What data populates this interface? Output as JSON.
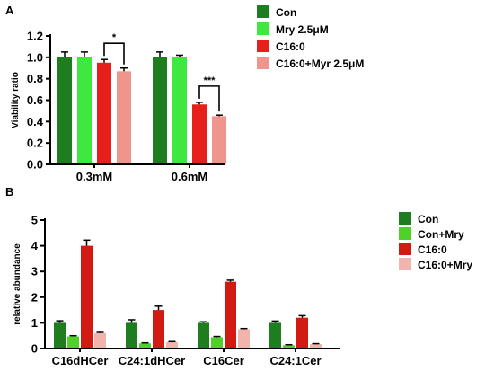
{
  "chart_data": [
    {
      "panel": "A",
      "type": "bar",
      "title": "",
      "xlabel": "",
      "ylabel": "Viability ratio",
      "ylim": [
        0,
        1.2
      ],
      "yticks": [
        "0.0",
        "0.2",
        "0.4",
        "0.6",
        "0.8",
        "1.0",
        "1.2"
      ],
      "categories": [
        "0.3mM",
        "0.6mM"
      ],
      "series": [
        {
          "name": "Con",
          "color": "#1e7d1e",
          "values": [
            1.0,
            1.0
          ],
          "errors": [
            0.05,
            0.05
          ]
        },
        {
          "name": "Mry 2.5μM",
          "color": "#3ee83e",
          "values": [
            1.0,
            1.0
          ],
          "errors": [
            0.05,
            0.02
          ]
        },
        {
          "name": "C16:0",
          "color": "#e8201c",
          "values": [
            0.95,
            0.56
          ],
          "errors": [
            0.03,
            0.02
          ]
        },
        {
          "name": "C16:0+Myr 2.5μM",
          "color": "#f0958c",
          "values": [
            0.87,
            0.45
          ],
          "errors": [
            0.03,
            0.01
          ]
        }
      ],
      "annotations": [
        {
          "text": "*",
          "category": "0.3mM",
          "between": [
            "C16:0",
            "C16:0+Myr 2.5μM"
          ]
        },
        {
          "text": "***",
          "category": "0.6mM",
          "between": [
            "C16:0",
            "C16:0+Myr 2.5μM"
          ]
        }
      ],
      "legend": "right",
      "grid": false
    },
    {
      "panel": "B",
      "type": "bar",
      "title": "",
      "xlabel": "",
      "ylabel": "relative abundance",
      "ylim": [
        0,
        5
      ],
      "yticks": [
        "0",
        "1",
        "2",
        "3",
        "4",
        "5"
      ],
      "categories": [
        "C16dHCer",
        "C24:1dHCer",
        "C16Cer",
        "C24:1Cer"
      ],
      "series": [
        {
          "name": "Con",
          "color": "#1e7d1e",
          "values": [
            1.0,
            1.0,
            1.0,
            1.0
          ],
          "errors": [
            0.08,
            0.12,
            0.04,
            0.07
          ]
        },
        {
          "name": "Con+Mry",
          "color": "#4fd12a",
          "values": [
            0.47,
            0.2,
            0.44,
            0.13
          ],
          "errors": [
            0.03,
            0.02,
            0.03,
            0.02
          ]
        },
        {
          "name": "C16:0",
          "color": "#d21a12",
          "values": [
            4.0,
            1.5,
            2.6,
            1.2
          ],
          "errors": [
            0.22,
            0.15,
            0.06,
            0.08
          ]
        },
        {
          "name": "C16:0+Mry",
          "color": "#f1b4ad",
          "values": [
            0.6,
            0.25,
            0.75,
            0.17
          ],
          "errors": [
            0.03,
            0.02,
            0.03,
            0.02
          ]
        }
      ],
      "legend": "right",
      "grid": false
    }
  ],
  "panel_labels": {
    "a": "A",
    "b": "B"
  }
}
